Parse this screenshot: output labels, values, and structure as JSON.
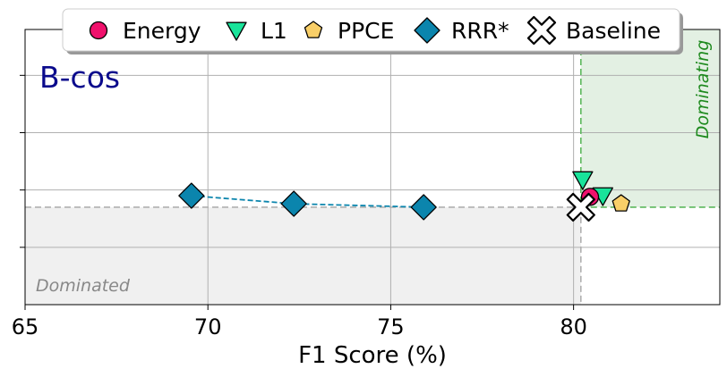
{
  "chart_data": {
    "type": "scatter",
    "panel_label": "B-cos",
    "xlabel": "F1 Score (%)",
    "ylabel": "",
    "xlim": [
      65,
      84
    ],
    "ylim": [
      0,
      4.8
    ],
    "x_ticks": [
      65,
      70,
      75,
      80
    ],
    "x_tick_labels": [
      "65",
      "70",
      "75",
      "80"
    ],
    "y_ticks": [
      1,
      2,
      3,
      4
    ],
    "grid": true,
    "legend_position": "top-center",
    "series": [
      {
        "name": "Energy",
        "marker": "circle",
        "color": "#f0116c",
        "points": [
          {
            "x": 80.45,
            "y": 1.88
          }
        ]
      },
      {
        "name": "L1",
        "marker": "triangle-down",
        "color": "#19e39a",
        "points": [
          {
            "x": 80.25,
            "y": 2.18
          },
          {
            "x": 80.8,
            "y": 1.9
          }
        ]
      },
      {
        "name": "PPCE",
        "marker": "pentagon",
        "color": "#f9cf68",
        "points": [
          {
            "x": 81.3,
            "y": 1.76
          }
        ]
      },
      {
        "name": "RRR*",
        "marker": "diamond",
        "color": "#0b85ad",
        "connected": true,
        "points": [
          {
            "x": 69.55,
            "y": 1.9
          },
          {
            "x": 72.35,
            "y": 1.76
          },
          {
            "x": 75.9,
            "y": 1.7
          }
        ]
      },
      {
        "name": "Baseline",
        "marker": "cross",
        "color": "#ffffff",
        "points": [
          {
            "x": 80.2,
            "y": 1.7
          }
        ]
      }
    ],
    "baseline": {
      "x": 80.2,
      "y": 1.7
    },
    "annotations": [
      {
        "text": "Dominated",
        "region": "bottom-left"
      },
      {
        "text": "Dominating",
        "region": "top-right"
      }
    ],
    "colors": {
      "dominated_fill": "#f0f0f0",
      "dominating_fill": "#e3f0e3",
      "dominating_line": "#5cb85c",
      "dominating_text": "#1e8a1e",
      "dominated_text": "#888888",
      "baseline_line": "#b0b0b0",
      "panel_label": "#0a0a8c",
      "rrr_line": "#0b85ad"
    }
  }
}
